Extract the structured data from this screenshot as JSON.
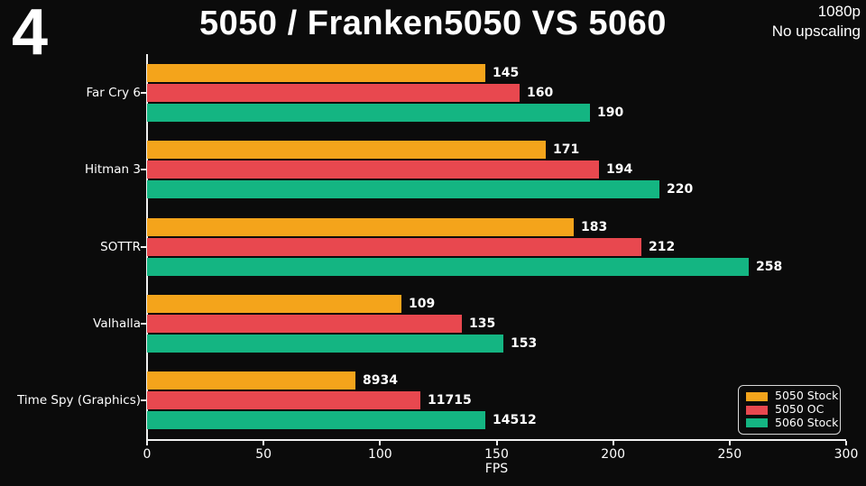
{
  "page": {
    "corner_number": "4",
    "title": "5050 / Franken5050 VS 5060",
    "resolution": "1080p",
    "upscaling": "No upscaling"
  },
  "chart_data": {
    "type": "bar",
    "orientation": "horizontal",
    "title": "5050 / Franken5050 VS 5060",
    "xlabel": "FPS",
    "xlim": [
      0,
      300
    ],
    "xticks": [
      0,
      50,
      100,
      150,
      200,
      250,
      300
    ],
    "grid": false,
    "legend_position": "lower right",
    "categories": [
      "Far Cry 6",
      "Hitman 3",
      "SOTTR",
      "Valhalla",
      "Time Spy (Graphics)"
    ],
    "series": [
      {
        "name": "5050 Stock",
        "color": "#F4A41B",
        "values": [
          145,
          171,
          183,
          109,
          8934
        ],
        "plotted": [
          145,
          171,
          183,
          109,
          89.34
        ]
      },
      {
        "name": "5050 OC",
        "color": "#E8484F",
        "values": [
          160,
          194,
          212,
          135,
          11715
        ],
        "plotted": [
          160,
          194,
          212,
          135,
          117.15
        ]
      },
      {
        "name": "5060 Stock",
        "color": "#14B582",
        "values": [
          190,
          220,
          258,
          153,
          14512
        ],
        "plotted": [
          190,
          220,
          258,
          153,
          145.12
        ]
      }
    ],
    "colors": {
      "background": "#0B0B0B",
      "text": "#FFFFFF",
      "axis": "#F0F0F0"
    }
  }
}
